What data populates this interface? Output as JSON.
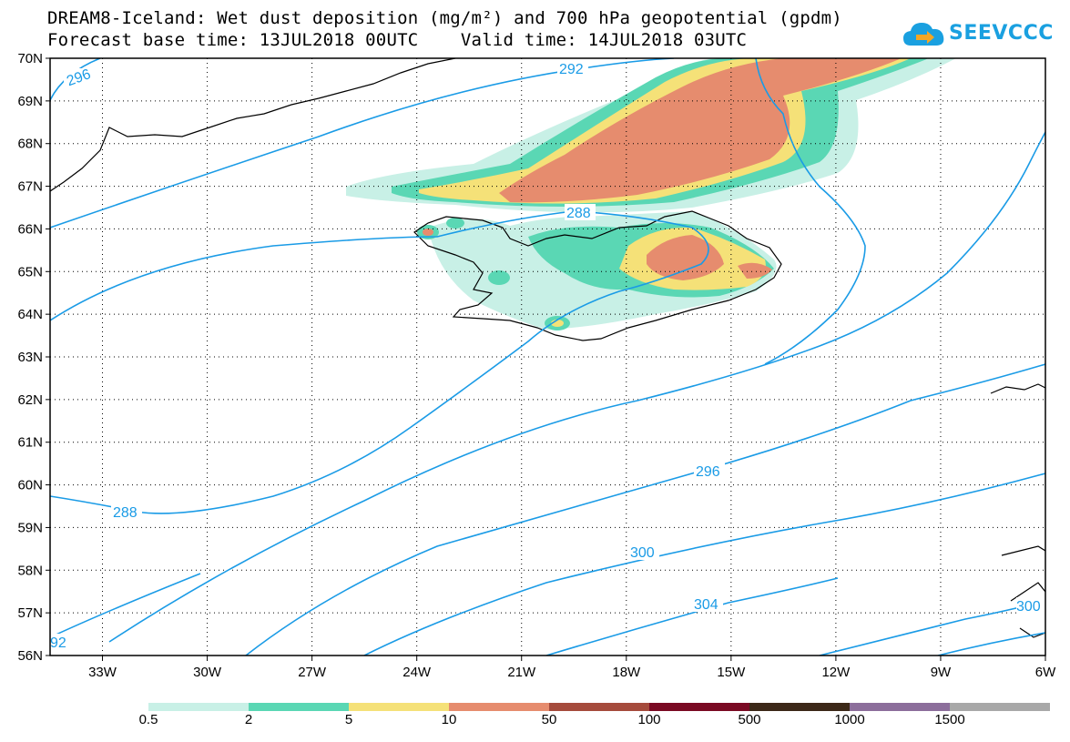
{
  "title": {
    "line1": "DREAM8-Iceland: Wet dust deposition (mg/m²) and 700 hPa geopotential (gpdm)",
    "line2": "Forecast base time: 13JUL2018 00UTC    Valid time: 14JUL2018 03UTC"
  },
  "logo": {
    "text": "SEEVCCC",
    "icon": "cloud-icon",
    "color": "#1aa0e0"
  },
  "axes": {
    "lon_labels": [
      "33W",
      "30W",
      "27W",
      "24W",
      "21W",
      "18W",
      "15W",
      "12W",
      "9W",
      "6W"
    ],
    "lat_labels": [
      "70N",
      "69N",
      "68N",
      "67N",
      "66N",
      "65N",
      "64N",
      "63N",
      "62N",
      "61N",
      "60N",
      "59N",
      "58N",
      "57N",
      "56N"
    ],
    "lon_range": [
      -34.5,
      -6
    ],
    "lat_range": [
      56,
      70
    ]
  },
  "colorbar": {
    "labels": [
      "0.5",
      "2",
      "5",
      "10",
      "50",
      "100",
      "500",
      "1000",
      "1500"
    ],
    "colors": [
      "#c8f0e6",
      "#5ad7b4",
      "#f5e178",
      "#e68c6e",
      "#a54b3c",
      "#7a0a23",
      "#3c2818",
      "#8c6e9b",
      "#a8a8a8"
    ]
  },
  "contour_labels": {
    "c292_top": "292",
    "c296_top": "296",
    "c288_north": "288",
    "c288_south": "288",
    "c296_mid": "296",
    "c300": "300",
    "c304": "304",
    "c292_sw": "92",
    "c300_se": "300"
  },
  "contour_color": "#1a9be6"
}
